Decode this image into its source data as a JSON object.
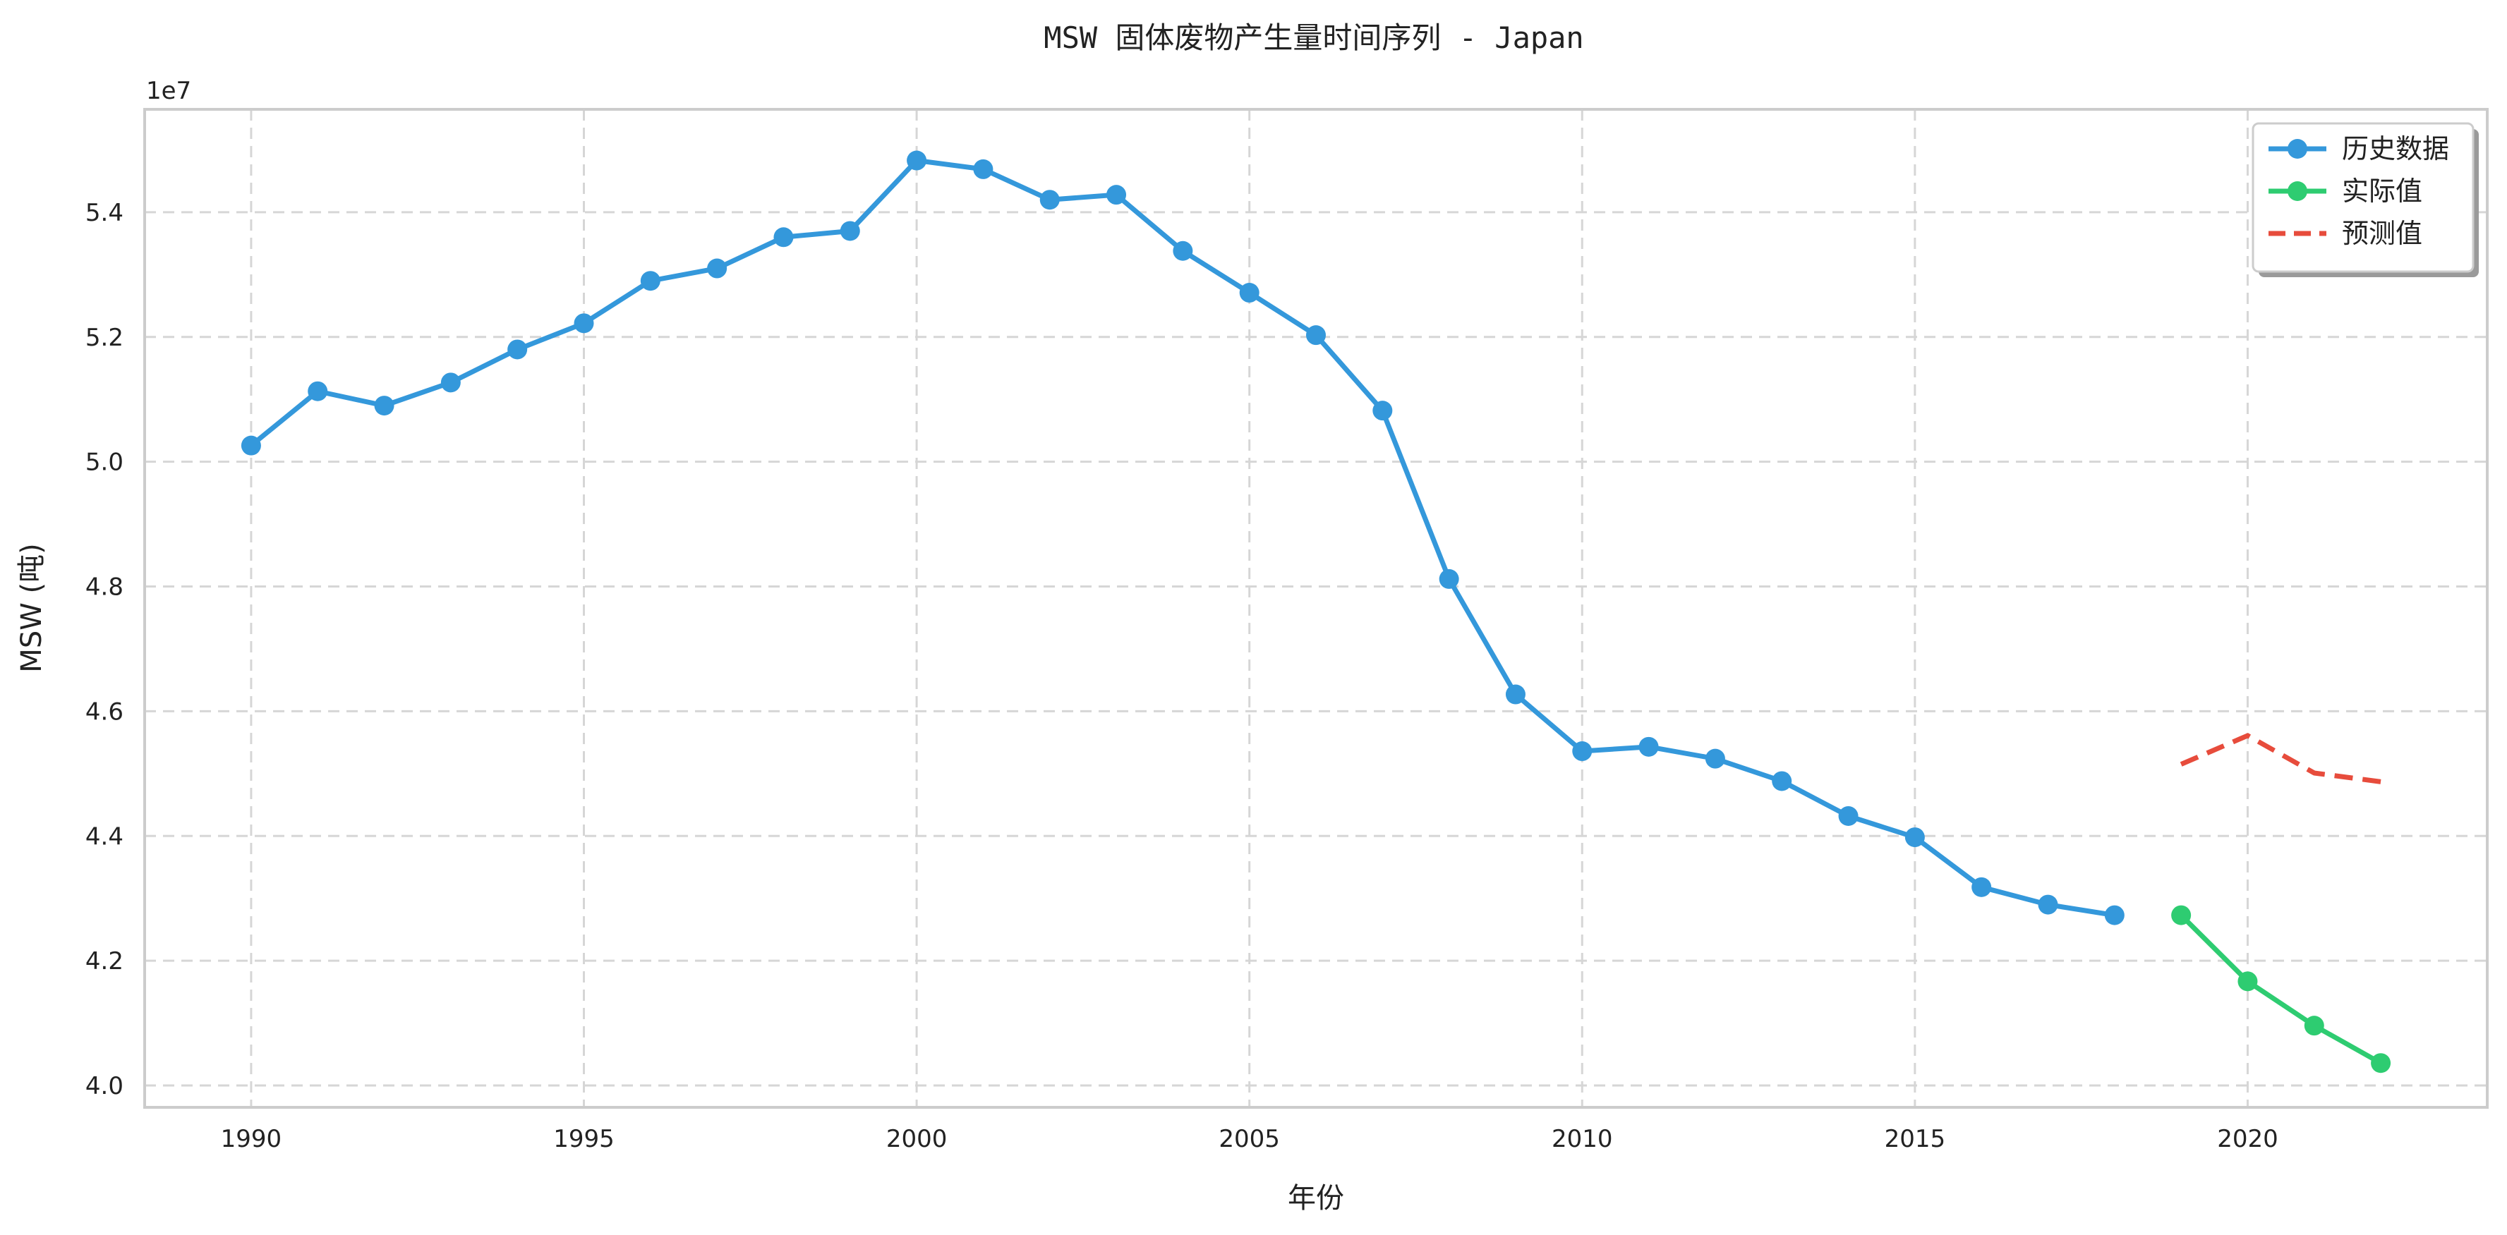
{
  "chart_data": {
    "type": "line",
    "title": "MSW 固体废物产生量时间序列 - Japan",
    "xlabel": "年份",
    "ylabel": "MSW (吨)",
    "y_offset_label": "1e7",
    "xlim": [
      1988.4,
      2023.6
    ],
    "ylim": [
      3.965,
      5.565
    ],
    "x_ticks": [
      1990,
      1995,
      2000,
      2005,
      2010,
      2015,
      2020
    ],
    "y_ticks": [
      4.0,
      4.2,
      4.4,
      4.6,
      4.8,
      5.0,
      5.2,
      5.4
    ],
    "y_tick_labels": [
      "4.0",
      "4.2",
      "4.4",
      "4.6",
      "4.8",
      "5.0",
      "5.2",
      "5.4"
    ],
    "grid": true,
    "legend_position": "top-right",
    "series": [
      {
        "name": "历史数据",
        "color": "#3498db",
        "style": "solid",
        "marker": "circle",
        "x": [
          1990,
          1991,
          1992,
          1993,
          1994,
          1995,
          1996,
          1997,
          1998,
          1999,
          2000,
          2001,
          2002,
          2003,
          2004,
          2005,
          2006,
          2007,
          2008,
          2009,
          2010,
          2011,
          2012,
          2013,
          2014,
          2015,
          2016,
          2017,
          2018
        ],
        "values": [
          5.026,
          5.113,
          5.09,
          5.127,
          5.18,
          5.222,
          5.29,
          5.31,
          5.36,
          5.37,
          5.483,
          5.469,
          5.42,
          5.428,
          5.338,
          5.271,
          5.203,
          5.082,
          4.812,
          4.627,
          4.536,
          4.543,
          4.524,
          4.488,
          4.432,
          4.398,
          4.318,
          4.29,
          4.273
        ]
      },
      {
        "name": "实际值",
        "color": "#2ecc71",
        "style": "solid",
        "marker": "circle",
        "x": [
          2019,
          2020,
          2021,
          2022
        ],
        "values": [
          4.273,
          4.167,
          4.096,
          4.036
        ]
      },
      {
        "name": "预测值",
        "color": "#e74c3c",
        "style": "dashed",
        "marker": "none",
        "x": [
          2019,
          2020,
          2021,
          2022
        ],
        "values": [
          4.515,
          4.561,
          4.501,
          4.487
        ]
      }
    ]
  }
}
